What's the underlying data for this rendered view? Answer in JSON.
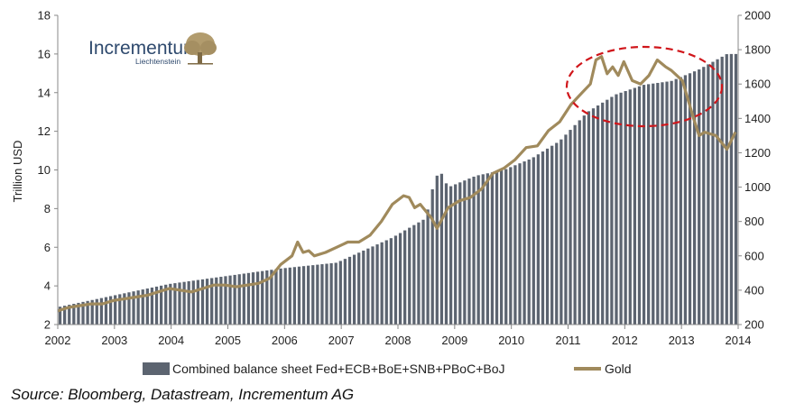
{
  "source": "Source: Bloomberg, Datastream, Incrementum AG",
  "logo": {
    "name": "Incrementum",
    "subtitle": "Liechtenstein"
  },
  "colors": {
    "bars": "#5c6470",
    "gold": "#a08a5c",
    "annotation": "#d0161b"
  },
  "chart_data": {
    "type": "bar+line",
    "title": "",
    "x_tick_labels": [
      "2002",
      "2003",
      "2004",
      "2005",
      "2006",
      "2007",
      "2008",
      "2009",
      "2010",
      "2011",
      "2012",
      "2013",
      "2014"
    ],
    "y_left": {
      "label": "Trillion USD",
      "range": [
        2,
        18
      ],
      "ticks": [
        2,
        4,
        6,
        8,
        10,
        12,
        14,
        16,
        18
      ]
    },
    "y_right": {
      "label": "",
      "range": [
        200,
        2000
      ],
      "ticks": [
        200,
        400,
        600,
        800,
        1000,
        1200,
        1400,
        1600,
        1800,
        2000
      ]
    },
    "grid": false,
    "legend_position": "bottom",
    "series": [
      {
        "name": "Combined balance sheet Fed+ECB+BoE+SNB+PBoC+BoJ",
        "type": "bar",
        "axis": "left",
        "x": [
          2002.0,
          2003.0,
          2004.0,
          2005.0,
          2006.0,
          2007.0,
          2008.0,
          2008.6,
          2008.75,
          2008.85,
          2009.0,
          2009.5,
          2010.0,
          2010.5,
          2011.0,
          2011.5,
          2012.0,
          2012.5,
          2013.0,
          2013.5,
          2014.0,
          2014.15
        ],
        "values": [
          2.9,
          3.5,
          4.1,
          4.5,
          4.9,
          5.2,
          6.5,
          7.5,
          9.4,
          10.0,
          9.1,
          9.7,
          10.0,
          10.6,
          11.5,
          13.0,
          13.9,
          14.4,
          14.6,
          15.2,
          16.0,
          16.0
        ]
      },
      {
        "name": "Gold",
        "type": "line",
        "axis": "right",
        "x": [
          2002.0,
          2002.2,
          2002.4,
          2002.6,
          2002.8,
          2003.0,
          2003.2,
          2003.4,
          2003.6,
          2003.8,
          2004.0,
          2004.2,
          2004.4,
          2004.6,
          2004.8,
          2005.0,
          2005.2,
          2005.4,
          2005.6,
          2005.8,
          2006.0,
          2006.2,
          2006.3,
          2006.4,
          2006.5,
          2006.6,
          2006.8,
          2007.0,
          2007.2,
          2007.4,
          2007.6,
          2007.8,
          2008.0,
          2008.2,
          2008.3,
          2008.4,
          2008.5,
          2008.6,
          2008.7,
          2008.8,
          2008.9,
          2009.0,
          2009.2,
          2009.4,
          2009.6,
          2009.8,
          2010.0,
          2010.2,
          2010.4,
          2010.6,
          2010.8,
          2011.0,
          2011.2,
          2011.4,
          2011.55,
          2011.65,
          2011.75,
          2011.85,
          2011.95,
          2012.05,
          2012.15,
          2012.3,
          2012.45,
          2012.6,
          2012.75,
          2012.9,
          2013.0,
          2013.2,
          2013.4,
          2013.5,
          2013.6,
          2013.8,
          2014.0,
          2014.15
        ],
        "values": [
          280,
          300,
          310,
          320,
          320,
          340,
          350,
          360,
          370,
          390,
          410,
          400,
          390,
          410,
          430,
          430,
          420,
          430,
          440,
          470,
          550,
          600,
          680,
          620,
          630,
          600,
          620,
          650,
          680,
          680,
          720,
          800,
          900,
          950,
          940,
          880,
          900,
          860,
          820,
          760,
          820,
          880,
          920,
          940,
          990,
          1080,
          1110,
          1160,
          1230,
          1240,
          1330,
          1380,
          1480,
          1550,
          1600,
          1740,
          1760,
          1660,
          1700,
          1650,
          1730,
          1620,
          1600,
          1650,
          1740,
          1700,
          1680,
          1620,
          1400,
          1300,
          1320,
          1300,
          1220,
          1320
        ]
      }
    ],
    "annotation": {
      "shape": "dashed ellipse",
      "around": "2011-2013 peak"
    }
  }
}
